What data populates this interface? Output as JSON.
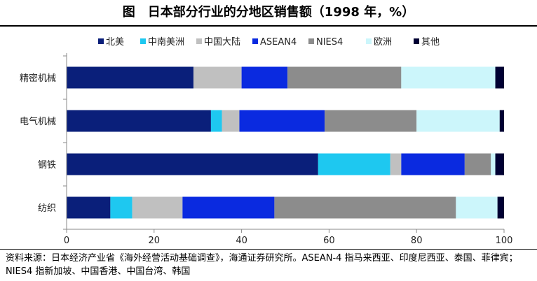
{
  "header": {
    "title": "图　日本部分行业的分地区销售额（1998 年，%）"
  },
  "footer": {
    "source": "资料来源：日本经济产业省《海外经营活动基础调查》，海通证券研究所。ASEAN-4 指马来西亚、印度尼西亚、泰国、菲律宾；NIES4 指新加坡、中国香港、中国台湾、韩国"
  },
  "chart_data": {
    "type": "bar",
    "orientation": "horizontal",
    "stacked": true,
    "title": "",
    "xlabel": "",
    "ylabel": "",
    "xlim": [
      0,
      100
    ],
    "x_ticks": [
      0,
      20,
      40,
      60,
      80,
      100
    ],
    "legend_position": "top",
    "grid": false,
    "categories": [
      "精密机械",
      "电气机械",
      "钢铁",
      "纺织"
    ],
    "series": [
      {
        "name": "北美",
        "color": "#0a1f7a",
        "values": [
          29,
          33,
          57.5,
          10
        ]
      },
      {
        "name": "中南美洲",
        "color": "#1ec8f0",
        "values": [
          0,
          2.5,
          16.5,
          5
        ]
      },
      {
        "name": "中国大陆",
        "color": "#c0c0c0",
        "values": [
          11,
          4,
          2.5,
          11.5
        ]
      },
      {
        "name": "ASEAN4",
        "color": "#0a2ae0",
        "values": [
          10.5,
          19.5,
          14.5,
          21
        ]
      },
      {
        "name": "NIES4",
        "color": "#8c8c8c",
        "values": [
          26,
          21,
          6,
          41.5
        ]
      },
      {
        "name": "欧洲",
        "color": "#ccf6fb",
        "values": [
          21.5,
          19,
          1,
          9.5
        ]
      },
      {
        "name": "其他",
        "color": "#000033",
        "values": [
          2,
          1,
          2,
          1.5
        ]
      }
    ]
  }
}
